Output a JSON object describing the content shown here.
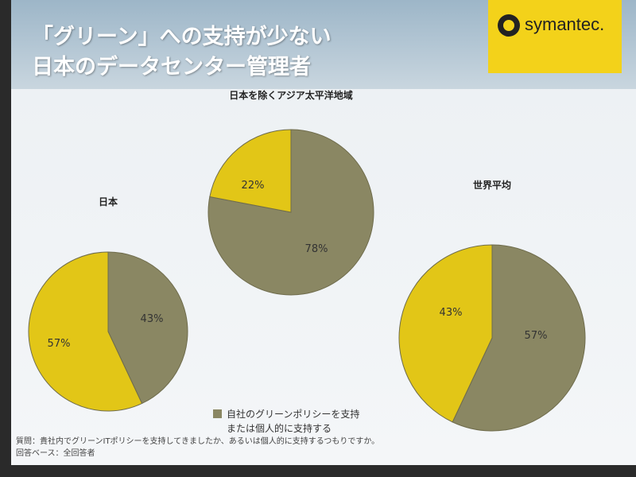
{
  "slide": {
    "title": "「グリーン」への支持が少ない\n日本のデータセンター管理者",
    "logo_text": "symantec.",
    "colors": {
      "support": "#8a8763",
      "other": "#e2c617",
      "edge": "#6f6c4c"
    }
  },
  "chart_data": [
    {
      "type": "pie",
      "title": "日本",
      "slices": [
        {
          "name": "自社のグリーンポリシーを支持\nまたは個人的に支持する",
          "value": 43,
          "label": "43%"
        },
        {
          "name": "",
          "value": 57,
          "label": "57%"
        }
      ]
    },
    {
      "type": "pie",
      "title": "日本を除くアジア太平洋地域",
      "slices": [
        {
          "name": "自社のグリーンポリシーを支持\nまたは個人的に支持する",
          "value": 78,
          "label": "78%"
        },
        {
          "name": "",
          "value": 22,
          "label": "22%"
        }
      ]
    },
    {
      "type": "pie",
      "title": "世界平均",
      "slices": [
        {
          "name": "自社のグリーンポリシーを支持\nまたは個人的に支持する",
          "value": 57,
          "label": "57%"
        },
        {
          "name": "",
          "value": 43,
          "label": "43%"
        }
      ]
    }
  ],
  "legend": {
    "label": "自社のグリーンポリシーを支持\nまたは個人的に支持する"
  },
  "footnote": {
    "question": "質問：貴社内でグリーンITポリシーを支持してきましたか、あるいは個人的に支持するつもりですか。",
    "base": "回答ベース：全回答者"
  }
}
